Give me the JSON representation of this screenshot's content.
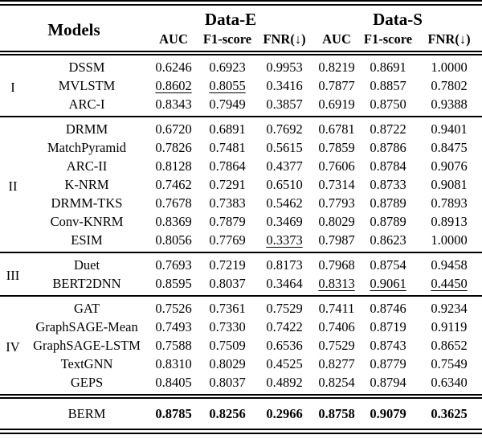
{
  "table": {
    "header": {
      "models_label": "Models",
      "datasets": [
        {
          "label": "Data-E",
          "metrics": [
            "AUC",
            "F1-score",
            "FNR(↓)"
          ]
        },
        {
          "label": "Data-S",
          "metrics": [
            "AUC",
            "F1-score",
            "FNR(↓)"
          ]
        }
      ]
    },
    "groups": [
      {
        "label": "I",
        "rows": [
          {
            "model": "DSSM",
            "values": [
              "0.6246",
              "0.6923",
              "0.9953",
              "0.8219",
              "0.8691",
              "1.0000"
            ],
            "underline": []
          },
          {
            "model": "MVLSTM",
            "values": [
              "0.8602",
              "0.8055",
              "0.3416",
              "0.7877",
              "0.8857",
              "0.7802"
            ],
            "underline": [
              0,
              1
            ]
          },
          {
            "model": "ARC-I",
            "values": [
              "0.8343",
              "0.7949",
              "0.3857",
              "0.6919",
              "0.8750",
              "0.9388"
            ],
            "underline": []
          }
        ]
      },
      {
        "label": "II",
        "rows": [
          {
            "model": "DRMM",
            "values": [
              "0.6720",
              "0.6891",
              "0.7692",
              "0.6781",
              "0.8722",
              "0.9401"
            ],
            "underline": []
          },
          {
            "model": "MatchPyramid",
            "values": [
              "0.7826",
              "0.7481",
              "0.5615",
              "0.7859",
              "0.8786",
              "0.8475"
            ],
            "underline": []
          },
          {
            "model": "ARC-II",
            "values": [
              "0.8128",
              "0.7864",
              "0.4377",
              "0.7606",
              "0.8784",
              "0.9076"
            ],
            "underline": []
          },
          {
            "model": "K-NRM",
            "values": [
              "0.7462",
              "0.7291",
              "0.6510",
              "0.7314",
              "0.8733",
              "0.9081"
            ],
            "underline": []
          },
          {
            "model": "DRMM-TKS",
            "values": [
              "0.7678",
              "0.7383",
              "0.5462",
              "0.7793",
              "0.8789",
              "0.7893"
            ],
            "underline": []
          },
          {
            "model": "Conv-KNRM",
            "values": [
              "0.8369",
              "0.7879",
              "0.3469",
              "0.8029",
              "0.8789",
              "0.8913"
            ],
            "underline": []
          },
          {
            "model": "ESIM",
            "values": [
              "0.8056",
              "0.7769",
              "0.3373",
              "0.7987",
              "0.8623",
              "1.0000"
            ],
            "underline": [
              2
            ]
          }
        ]
      },
      {
        "label": "III",
        "rows": [
          {
            "model": "Duet",
            "values": [
              "0.7693",
              "0.7219",
              "0.8173",
              "0.7968",
              "0.8754",
              "0.9458"
            ],
            "underline": []
          },
          {
            "model": "BERT2DNN",
            "values": [
              "0.8595",
              "0.8037",
              "0.3464",
              "0.8313",
              "0.9061",
              "0.4450"
            ],
            "underline": [
              3,
              4,
              5
            ]
          }
        ]
      },
      {
        "label": "IV",
        "rows": [
          {
            "model": "GAT",
            "values": [
              "0.7526",
              "0.7361",
              "0.7529",
              "0.7411",
              "0.8746",
              "0.9234"
            ],
            "underline": []
          },
          {
            "model": "GraphSAGE-Mean",
            "values": [
              "0.7493",
              "0.7330",
              "0.7422",
              "0.7406",
              "0.8719",
              "0.9119"
            ],
            "underline": []
          },
          {
            "model": "GraphSAGE-LSTM",
            "values": [
              "0.7588",
              "0.7509",
              "0.6536",
              "0.7529",
              "0.8743",
              "0.8652"
            ],
            "underline": []
          },
          {
            "model": "TextGNN",
            "values": [
              "0.8310",
              "0.8029",
              "0.4525",
              "0.8277",
              "0.8779",
              "0.7549"
            ],
            "underline": []
          },
          {
            "model": "GEPS",
            "values": [
              "0.8405",
              "0.8037",
              "0.4892",
              "0.8254",
              "0.8794",
              "0.6340"
            ],
            "underline": []
          }
        ]
      },
      {
        "label": "",
        "final": true,
        "rows": [
          {
            "model": "BERM",
            "values": [
              "0.8785",
              "0.8256",
              "0.2966",
              "0.8758",
              "0.9079",
              "0.3625"
            ],
            "underline": [],
            "bold": true
          }
        ]
      }
    ]
  }
}
